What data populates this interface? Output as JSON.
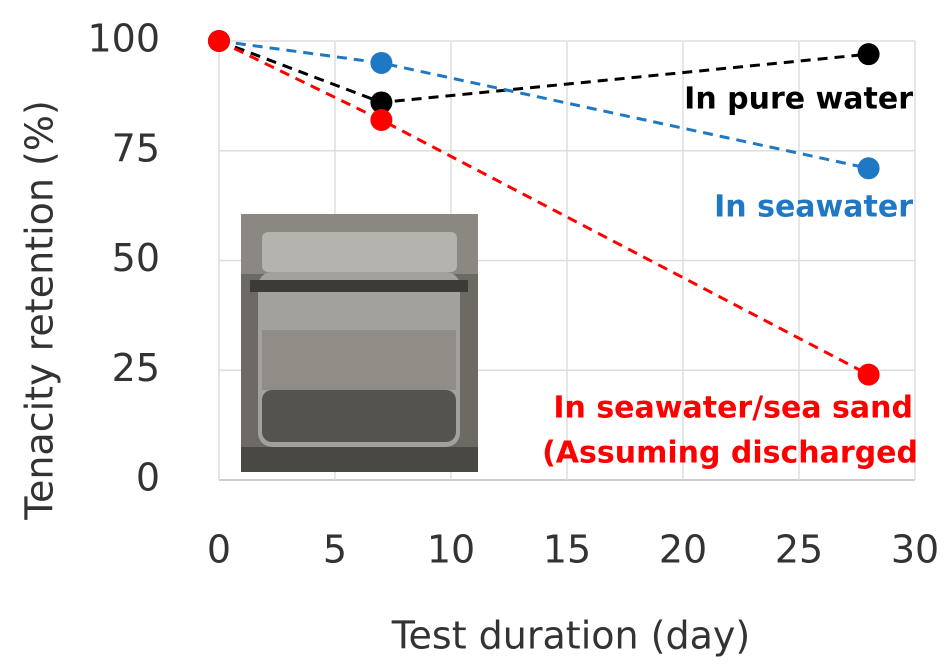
{
  "chart_data": {
    "type": "line",
    "x_label": "Test duration (day)",
    "y_label": "Tenacity retention (%)",
    "series": [
      {
        "name": "In pure water",
        "color": "#000000",
        "x": [
          0,
          7,
          28
        ],
        "values": [
          100,
          86,
          97
        ]
      },
      {
        "name": "In seawater",
        "color": "#1f78c4",
        "x": [
          0,
          7,
          28
        ],
        "values": [
          100,
          95,
          71
        ]
      },
      {
        "name": "In seawater/sea sand",
        "color": "#ff0000",
        "x": [
          0,
          7,
          28
        ],
        "values": [
          100,
          82,
          24
        ]
      }
    ],
    "annotations": [
      {
        "text": "(Assuming discharged",
        "color": "#ff0000"
      }
    ],
    "xlim": [
      0,
      30
    ],
    "xticks": [
      0,
      5,
      10,
      15,
      20,
      25,
      30
    ],
    "ylim": [
      0,
      100
    ],
    "yticks": [
      0,
      25,
      50,
      75,
      100
    ],
    "grid": true
  }
}
